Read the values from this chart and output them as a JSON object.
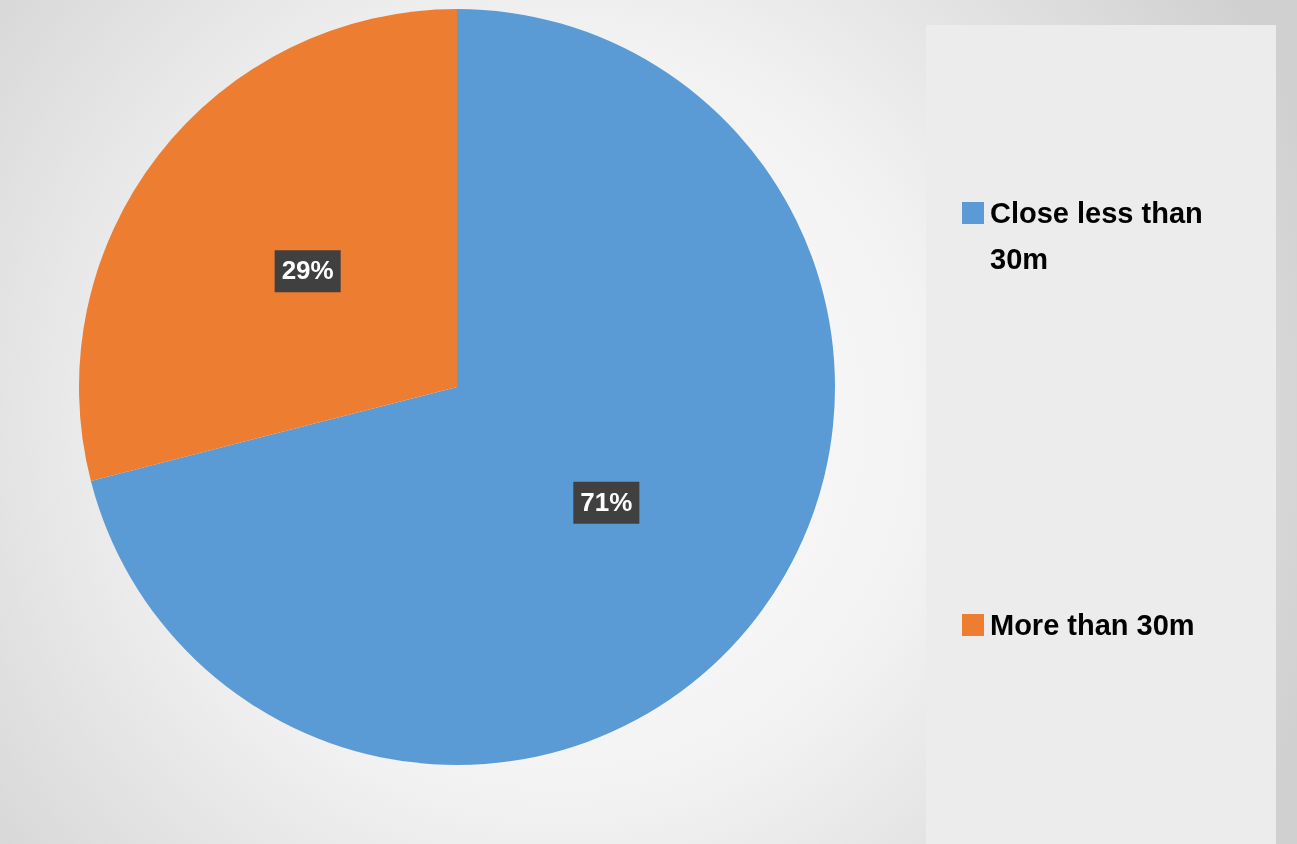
{
  "chart_data": {
    "type": "pie",
    "categories": [
      "Close less than 30m",
      "More than 30m"
    ],
    "values": [
      71,
      29
    ],
    "colors": [
      "#5b9bd5",
      "#ed7d31"
    ],
    "value_labels": [
      "71%",
      "29%"
    ],
    "legend": "right"
  }
}
